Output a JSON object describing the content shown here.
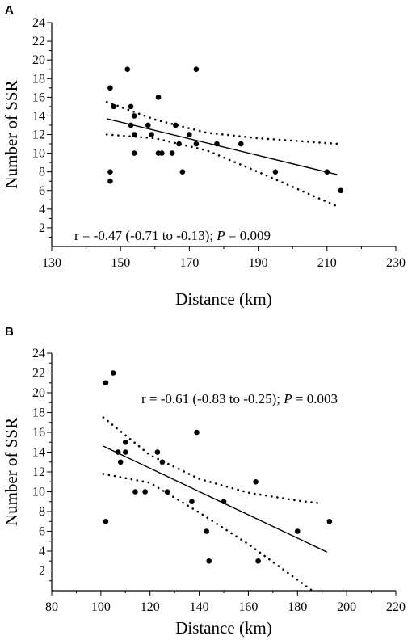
{
  "chart_data": [
    {
      "panel": "A",
      "type": "scatter",
      "xlabel": "Distance (km)",
      "ylabel": "Number of SSR",
      "xlim": [
        130,
        230
      ],
      "ylim": [
        0,
        24
      ],
      "xticks": [
        130,
        150,
        170,
        190,
        210,
        230
      ],
      "yticks": [
        2,
        4,
        6,
        8,
        10,
        12,
        14,
        16,
        18,
        20,
        22,
        24
      ],
      "annotation": {
        "prefix": "r = -0.47 (-0.71 to -0.13); ",
        "pvar": "P",
        "suffix": " = 0.009"
      },
      "points": [
        [
          147,
          17
        ],
        [
          147,
          8
        ],
        [
          147,
          7
        ],
        [
          148,
          15
        ],
        [
          152,
          19
        ],
        [
          153,
          15
        ],
        [
          153,
          13
        ],
        [
          154,
          14
        ],
        [
          154,
          12
        ],
        [
          154,
          10
        ],
        [
          158,
          13
        ],
        [
          159,
          12
        ],
        [
          161,
          16
        ],
        [
          161,
          10
        ],
        [
          162,
          10
        ],
        [
          165,
          10
        ],
        [
          166,
          13
        ],
        [
          167,
          11
        ],
        [
          168,
          8
        ],
        [
          170,
          12
        ],
        [
          172,
          19
        ],
        [
          172,
          11
        ],
        [
          178,
          11
        ],
        [
          185,
          11
        ],
        [
          195,
          8
        ],
        [
          210,
          8
        ],
        [
          214,
          6
        ]
      ],
      "regression": {
        "x": [
          146,
          213
        ],
        "y": [
          13.7,
          7.7
        ]
      },
      "ci_upper": {
        "x": [
          146,
          160,
          175,
          190,
          213
        ],
        "y": [
          15.5,
          13.6,
          12.2,
          11.6,
          11.0
        ]
      },
      "ci_lower": {
        "x": [
          146,
          160,
          175,
          190,
          213
        ],
        "y": [
          12.0,
          11.6,
          10.3,
          8.0,
          4.3
        ]
      }
    },
    {
      "panel": "B",
      "type": "scatter",
      "xlabel": "Distance (km)",
      "ylabel": "Number of SSR",
      "xlim": [
        80,
        220
      ],
      "ylim": [
        0,
        24
      ],
      "xticks": [
        80,
        100,
        120,
        140,
        160,
        180,
        200,
        220
      ],
      "yticks": [
        2,
        4,
        6,
        8,
        10,
        12,
        14,
        16,
        18,
        20,
        22,
        24
      ],
      "annotation": {
        "prefix": "r = -0.61 (-0.83 to -0.25); ",
        "pvar": "P",
        "suffix": " = 0.003"
      },
      "points": [
        [
          102,
          21
        ],
        [
          102,
          7
        ],
        [
          105,
          22
        ],
        [
          107,
          14
        ],
        [
          108,
          13
        ],
        [
          110,
          15
        ],
        [
          110,
          14
        ],
        [
          114,
          10
        ],
        [
          118,
          10
        ],
        [
          123,
          14
        ],
        [
          125,
          13
        ],
        [
          127,
          10
        ],
        [
          137,
          9
        ],
        [
          139,
          16
        ],
        [
          143,
          6
        ],
        [
          144,
          3
        ],
        [
          150,
          9
        ],
        [
          163,
          11
        ],
        [
          164,
          3
        ],
        [
          180,
          6
        ],
        [
          193,
          7
        ]
      ],
      "regression": {
        "x": [
          101,
          192
        ],
        "y": [
          14.6,
          3.9
        ]
      },
      "ci_upper": {
        "x": [
          101,
          120,
          140,
          160,
          180,
          190
        ],
        "y": [
          17.5,
          13.7,
          11.3,
          9.9,
          9.1,
          8.8
        ]
      },
      "ci_lower": {
        "x": [
          101,
          120,
          140,
          160,
          175,
          186
        ],
        "y": [
          11.8,
          10.9,
          7.9,
          4.7,
          2.0,
          0.0
        ]
      }
    }
  ]
}
